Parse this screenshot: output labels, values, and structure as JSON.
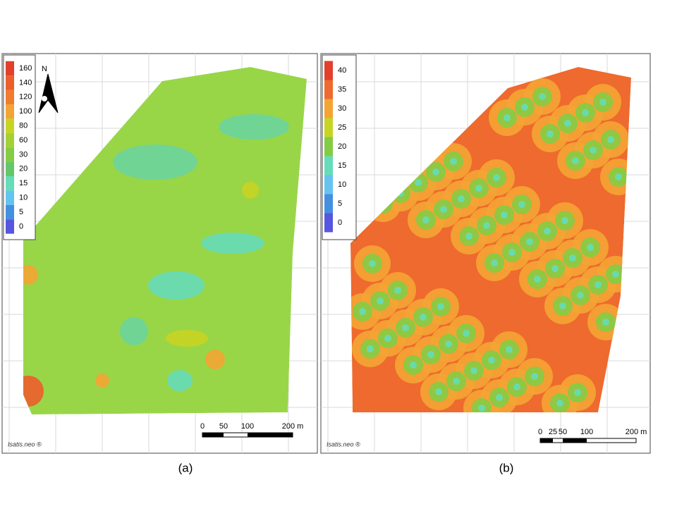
{
  "panels": [
    {
      "caption": "(a)",
      "north": "N",
      "watermark": "Isatis.neo ®",
      "scale": [
        "0",
        "50",
        "100",
        "200 m"
      ],
      "legend": [
        {
          "label": "160",
          "color": "#e2402a"
        },
        {
          "label": "140",
          "color": "#ec5e2c"
        },
        {
          "label": "120",
          "color": "#f07c30"
        },
        {
          "label": "100",
          "color": "#f4a434"
        },
        {
          "label": "80",
          "color": "#c8d424"
        },
        {
          "label": "60",
          "color": "#a4d034"
        },
        {
          "label": "30",
          "color": "#84cc44"
        },
        {
          "label": "20",
          "color": "#64c868"
        },
        {
          "label": "15",
          "color": "#66dcb8"
        },
        {
          "label": "10",
          "color": "#64c4f0"
        },
        {
          "label": "5",
          "color": "#4490e0"
        },
        {
          "label": "0",
          "color": "#5656e0"
        }
      ]
    },
    {
      "caption": "(b)",
      "watermark": "Isatis.neo ®",
      "scale": [
        "0",
        "25",
        "50",
        "100",
        "200 m"
      ],
      "legend": [
        {
          "label": "40",
          "color": "#e2402a"
        },
        {
          "label": "35",
          "color": "#ee6a2e"
        },
        {
          "label": "30",
          "color": "#f4a434"
        },
        {
          "label": "25",
          "color": "#c8d424"
        },
        {
          "label": "20",
          "color": "#84cc44"
        },
        {
          "label": "15",
          "color": "#66dcb8"
        },
        {
          "label": "10",
          "color": "#64c4f0"
        },
        {
          "label": "5",
          "color": "#4490e0"
        },
        {
          "label": "0",
          "color": "#5656e0"
        }
      ]
    }
  ]
}
